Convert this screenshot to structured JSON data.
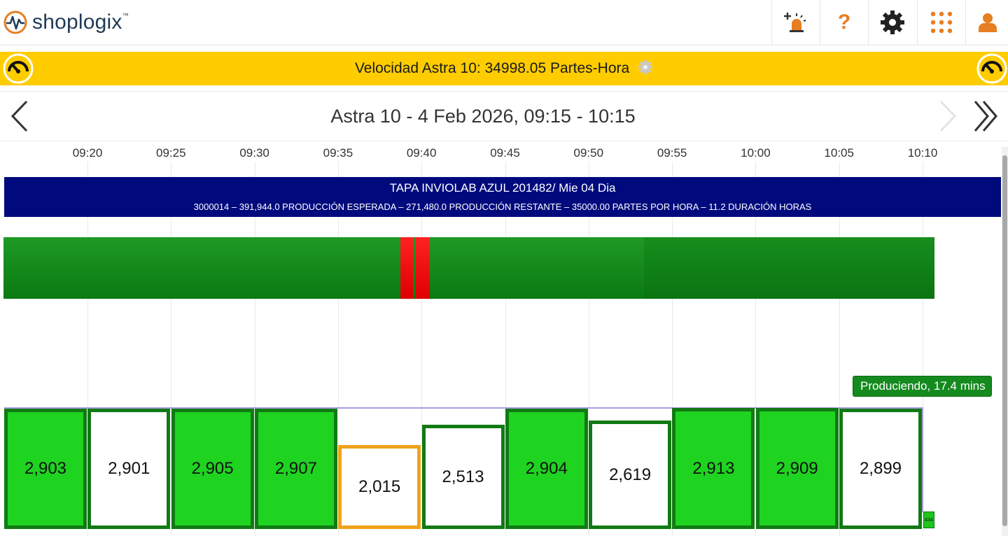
{
  "header": {
    "logo_text": "shoplogix",
    "logo_tm": "™",
    "icons": [
      "add-alarm-icon",
      "help-icon",
      "gear-icon",
      "apps-grid-icon",
      "user-icon"
    ],
    "help_glyph": "?"
  },
  "speed_banner": {
    "text": "Velocidad Astra 10: 34998.05 Partes-Hora"
  },
  "nav": {
    "title": "Astra 10 - 4 Feb 2026, 09:15 - 10:15"
  },
  "timeline": {
    "ticks": [
      "09:20",
      "09:25",
      "09:30",
      "09:35",
      "09:40",
      "09:45",
      "09:50",
      "09:55",
      "10:00",
      "10:05",
      "10:10"
    ]
  },
  "job": {
    "title": "TAPA INVIOLAB AZUL 201482/ Mie 04 Dia",
    "info": "3000014  –  391,944.0 PRODUCCIÓN ESPERADA  –  271,480.0 PRODUCCIÓN RESTANTE  –  35000.00 PARTES POR HORA  –  11.2 DURACIÓN HORAS"
  },
  "state": {
    "label": "Produciendo, 17.4 mins",
    "colors": {
      "running": "#15921b",
      "running_dark": "#0d7a14",
      "down": "#ee1111"
    }
  },
  "production": {
    "target": 2916,
    "intervals": [
      {
        "value": "2,903",
        "amount": 2903,
        "status": "met"
      },
      {
        "value": "2,901",
        "amount": 2901,
        "status": "near"
      },
      {
        "value": "2,905",
        "amount": 2905,
        "status": "met"
      },
      {
        "value": "2,907",
        "amount": 2907,
        "status": "met"
      },
      {
        "value": "2,015",
        "amount": 2015,
        "status": "low"
      },
      {
        "value": "2,513",
        "amount": 2513,
        "status": "near"
      },
      {
        "value": "2,904",
        "amount": 2904,
        "status": "met"
      },
      {
        "value": "2,619",
        "amount": 2619,
        "status": "near"
      },
      {
        "value": "2,913",
        "amount": 2913,
        "status": "met"
      },
      {
        "value": "2,909",
        "amount": 2909,
        "status": "met"
      },
      {
        "value": "2,899",
        "amount": 2899,
        "status": "near"
      }
    ],
    "current": {
      "value": "434",
      "amount": 434
    }
  }
}
